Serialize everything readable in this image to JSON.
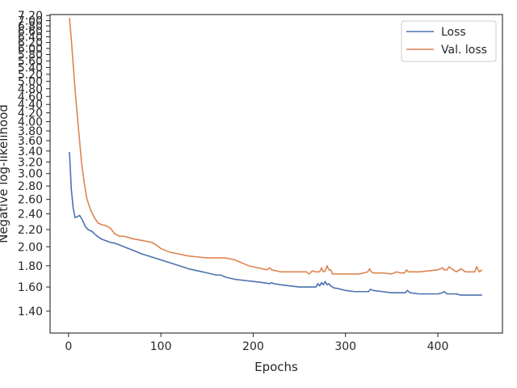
{
  "chart_data": {
    "type": "line",
    "xlabel": "Epochs",
    "ylabel": "Negative log-likelihood",
    "xlim": [
      -20,
      470
    ],
    "ylim": [
      1.24,
      7.24
    ],
    "y_scale": "log",
    "grid": false,
    "legend_position": "top-right",
    "x_ticks": [
      0,
      100,
      200,
      300,
      400
    ],
    "x_tick_labels": [
      "0",
      "100",
      "200",
      "300",
      "400"
    ],
    "y_ticks": [
      1.4,
      1.6,
      1.8,
      2.0,
      2.2,
      2.4,
      2.6,
      2.8,
      3.0,
      3.2,
      3.4,
      3.6,
      3.8,
      4.0,
      4.2,
      4.4,
      4.6,
      4.8,
      5.0,
      5.2,
      5.4,
      5.6,
      5.8,
      6.0,
      6.2,
      6.4,
      6.6,
      6.8,
      7.0,
      7.2
    ],
    "y_tick_labels": [
      "1.40",
      "1.60",
      "1.80",
      "2.00",
      "2.20",
      "2.40",
      "2.60",
      "2.80",
      "3.00",
      "3.20",
      "3.40",
      "3.60",
      "3.80",
      "4.00",
      "4.20",
      "4.40",
      "4.60",
      "4.80",
      "5.00",
      "5.20",
      "5.40",
      "5.60",
      "5.80",
      "6.00",
      "6.20",
      "6.40",
      "6.60",
      "6.80",
      "7.00",
      "7.20"
    ],
    "series": [
      {
        "name": "Loss",
        "color": "#4c72b0",
        "x": [
          1,
          3,
          5,
          7,
          9,
          12,
          15,
          18,
          21,
          25,
          30,
          35,
          40,
          45,
          50,
          55,
          60,
          70,
          80,
          90,
          100,
          110,
          120,
          130,
          140,
          150,
          160,
          165,
          170,
          180,
          190,
          200,
          210,
          218,
          220,
          222,
          230,
          240,
          250,
          260,
          265,
          268,
          270,
          272,
          274,
          276,
          278,
          280,
          282,
          284,
          286,
          288,
          290,
          300,
          310,
          320,
          325,
          327,
          330,
          340,
          350,
          360,
          365,
          367,
          370,
          380,
          390,
          400,
          405,
          407,
          410,
          420,
          425,
          430,
          440,
          445,
          448
        ],
        "y": [
          3.38,
          2.75,
          2.48,
          2.35,
          2.36,
          2.38,
          2.32,
          2.24,
          2.2,
          2.18,
          2.13,
          2.09,
          2.07,
          2.05,
          2.04,
          2.02,
          2.0,
          1.96,
          1.92,
          1.89,
          1.86,
          1.83,
          1.8,
          1.77,
          1.75,
          1.73,
          1.71,
          1.71,
          1.69,
          1.67,
          1.66,
          1.65,
          1.64,
          1.63,
          1.64,
          1.63,
          1.62,
          1.61,
          1.6,
          1.6,
          1.6,
          1.6,
          1.63,
          1.61,
          1.64,
          1.62,
          1.65,
          1.62,
          1.63,
          1.61,
          1.6,
          1.59,
          1.59,
          1.57,
          1.56,
          1.56,
          1.56,
          1.58,
          1.57,
          1.56,
          1.55,
          1.55,
          1.55,
          1.57,
          1.55,
          1.54,
          1.54,
          1.54,
          1.55,
          1.56,
          1.54,
          1.54,
          1.53,
          1.53,
          1.53,
          1.53,
          1.53
        ]
      },
      {
        "name": "Val. loss",
        "color": "#dd8452",
        "x": [
          1,
          3,
          5,
          8,
          11,
          14,
          17,
          20,
          24,
          28,
          32,
          36,
          40,
          45,
          50,
          55,
          60,
          70,
          80,
          90,
          95,
          100,
          110,
          120,
          130,
          140,
          150,
          155,
          160,
          165,
          170,
          175,
          180,
          185,
          190,
          195,
          200,
          205,
          210,
          215,
          218,
          220,
          225,
          230,
          240,
          250,
          255,
          258,
          260,
          262,
          264,
          268,
          272,
          274,
          276,
          278,
          280,
          282,
          284,
          286,
          290,
          300,
          305,
          310,
          315,
          320,
          324,
          326,
          328,
          330,
          340,
          350,
          355,
          360,
          364,
          366,
          368,
          370,
          380,
          390,
          400,
          403,
          405,
          407,
          410,
          412,
          415,
          420,
          425,
          430,
          440,
          442,
          445,
          448
        ],
        "y": [
          7.1,
          6.3,
          5.5,
          4.5,
          3.8,
          3.2,
          2.85,
          2.6,
          2.45,
          2.35,
          2.28,
          2.26,
          2.25,
          2.22,
          2.15,
          2.12,
          2.12,
          2.09,
          2.07,
          2.05,
          2.02,
          1.98,
          1.94,
          1.92,
          1.9,
          1.89,
          1.88,
          1.88,
          1.88,
          1.88,
          1.88,
          1.87,
          1.86,
          1.84,
          1.82,
          1.8,
          1.79,
          1.78,
          1.77,
          1.76,
          1.78,
          1.76,
          1.75,
          1.74,
          1.74,
          1.74,
          1.74,
          1.74,
          1.72,
          1.73,
          1.75,
          1.74,
          1.74,
          1.78,
          1.74,
          1.75,
          1.8,
          1.76,
          1.76,
          1.72,
          1.72,
          1.72,
          1.72,
          1.72,
          1.72,
          1.73,
          1.74,
          1.77,
          1.74,
          1.73,
          1.73,
          1.72,
          1.74,
          1.73,
          1.73,
          1.76,
          1.74,
          1.74,
          1.74,
          1.75,
          1.76,
          1.77,
          1.78,
          1.76,
          1.76,
          1.79,
          1.77,
          1.74,
          1.77,
          1.74,
          1.74,
          1.79,
          1.74,
          1.76
        ]
      }
    ]
  }
}
